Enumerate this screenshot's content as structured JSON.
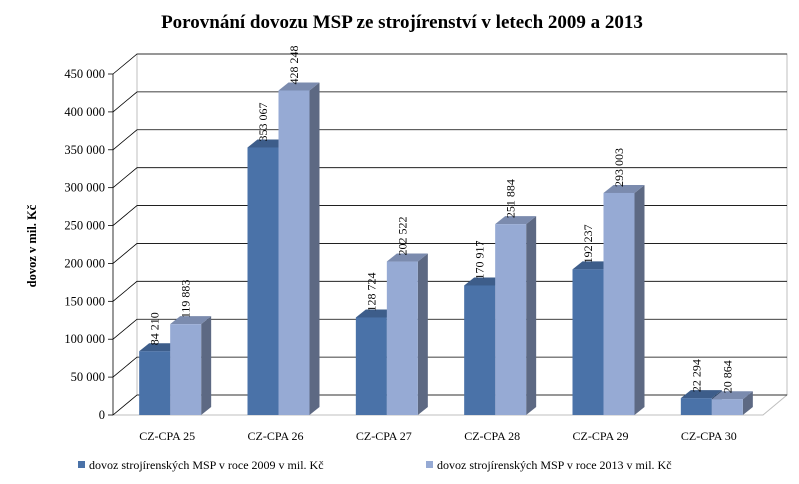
{
  "chart_data": {
    "type": "bar",
    "title": "Porovnání dovozu MSP ze strojírenství v letech 2009 a 2013",
    "ylabel": "dovoz  v mil. Kč",
    "xlabel": "",
    "categories": [
      "CZ-CPA 25",
      "CZ-CPA 26",
      "CZ-CPA 27",
      "CZ-CPA 28",
      "CZ-CPA 29",
      "CZ-CPA 30"
    ],
    "series": [
      {
        "name": "dovoz strojírenských MSP v roce 2009 v mil. Kč",
        "values": [
          84210,
          353067,
          128724,
          170917,
          192237,
          22294
        ],
        "labels": [
          "84 210",
          "353 067",
          "128 724",
          "170 917",
          "192 237",
          "22 294"
        ],
        "color": "#4A72A8"
      },
      {
        "name": "dovoz strojírenských MSP v roce 2013 v mil. Kč",
        "values": [
          119883,
          428248,
          202522,
          251884,
          293003,
          20864
        ],
        "labels": [
          "119 883",
          "428 248",
          "202 522",
          "251 884",
          "293 003",
          "20 864"
        ],
        "color": "#96AAD4"
      }
    ],
    "ylim": [
      0,
      450000
    ],
    "yticks": [
      0,
      50000,
      100000,
      150000,
      200000,
      250000,
      300000,
      350000,
      400000,
      450000
    ],
    "ytick_labels": [
      "0",
      "50 000",
      "100 000",
      "150 000",
      "200 000",
      "250 000",
      "300 000",
      "350 000",
      "400 000",
      "450 000"
    ],
    "grid": true,
    "legend_position": "bottom",
    "style": "3d-clustered-column"
  }
}
